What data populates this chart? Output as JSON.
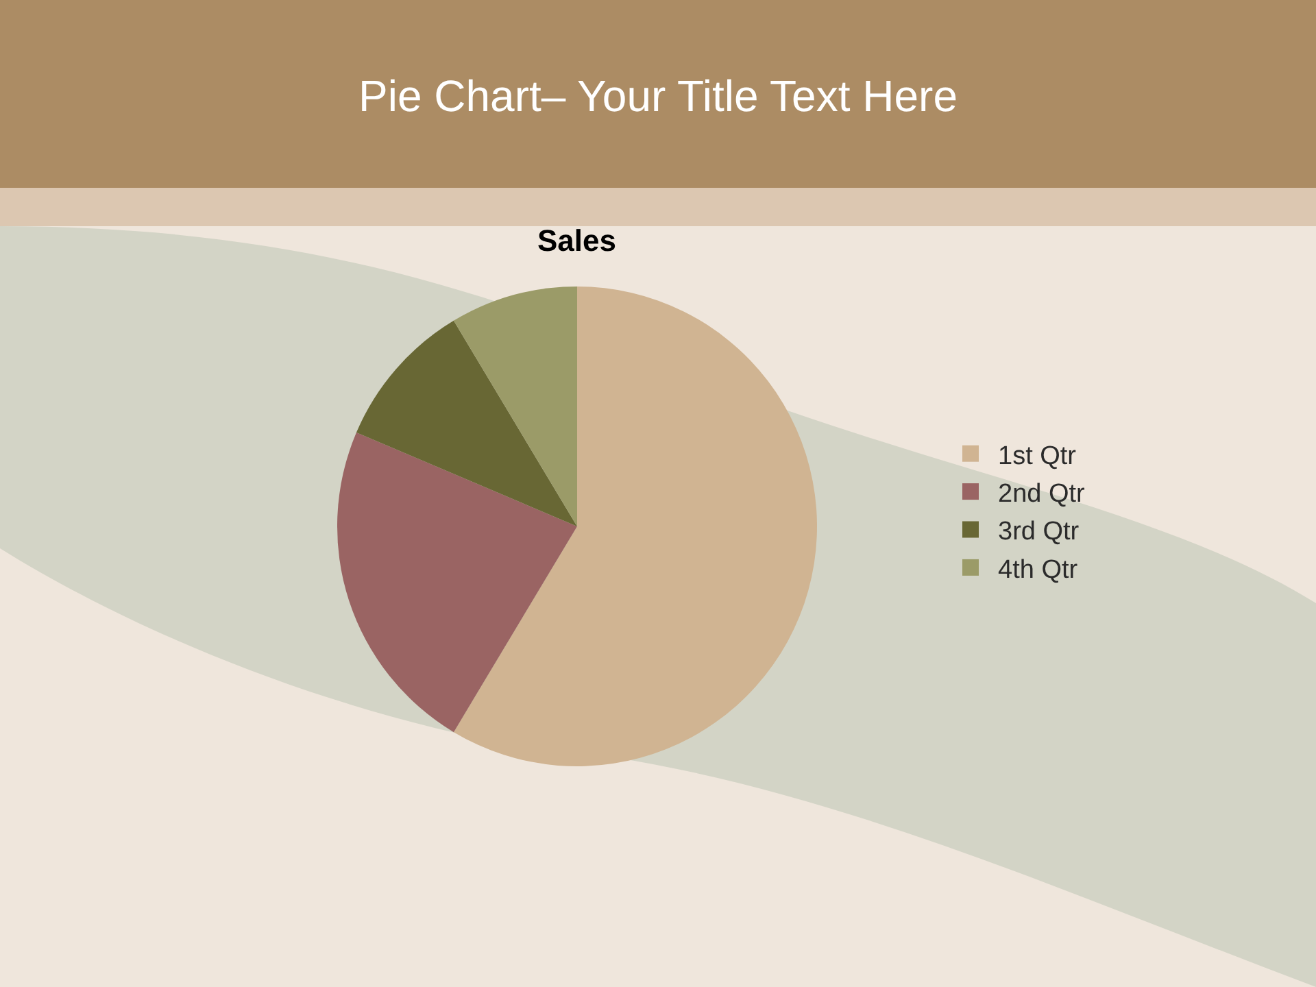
{
  "chart_data": {
    "type": "pie",
    "title": "Pie Chart– Your Title Text Here",
    "subtitle": "Sales",
    "categories": [
      "1st Qtr",
      "2nd Qtr",
      "3rd Qtr",
      "4th Qtr"
    ],
    "values": [
      58.6,
      22.8,
      10.0,
      8.6
    ],
    "colors": [
      "#d0b492",
      "#9a6463",
      "#686734",
      "#9b9b68"
    ],
    "legend": "right"
  }
}
